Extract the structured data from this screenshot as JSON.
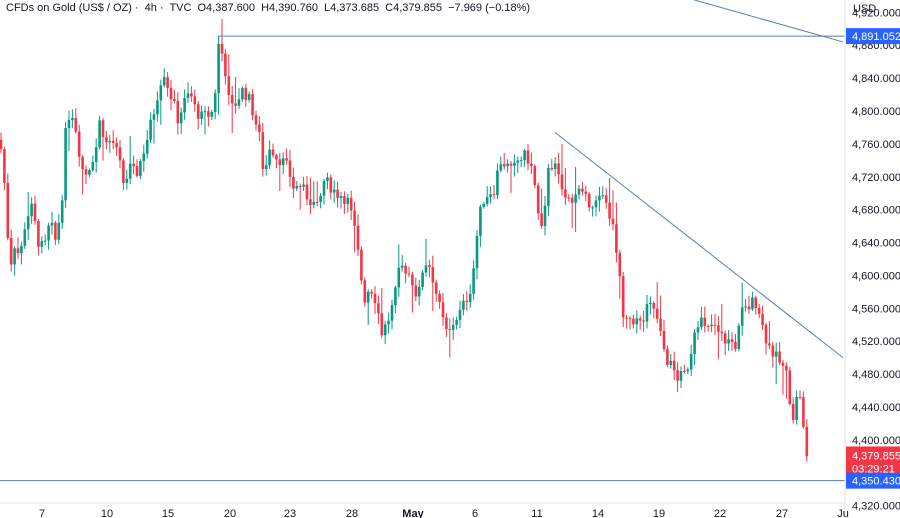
{
  "header": {
    "symbol": "CFDs on Gold (US$ / OZ)",
    "interval": "4h",
    "source": "TVC",
    "open": "O4,387.600",
    "high": "H4,390.760",
    "low": "L4,373.685",
    "close": "C4,379.855",
    "change": "−7.969 (−0.18%)"
  },
  "currency": "USD",
  "colors": {
    "up": "#089981",
    "down": "#f23645",
    "trendline": "#5b7bb5",
    "badge_blue": "#2962ff",
    "badge_red": "#f23645"
  },
  "chart_data": {
    "type": "candlestick",
    "y_range": [
      4305,
      4935
    ],
    "y_ticks": [
      "4,920.000",
      "4,880.000",
      "4,840.000",
      "4,800.000",
      "4,760.000",
      "4,720.000",
      "4,680.000",
      "4,640.000",
      "4,600.000",
      "4,560.000",
      "4,520.000",
      "4,480.000",
      "4,440.000",
      "4,400.000",
      "4,320.000"
    ],
    "x_ticks": [
      {
        "label": "7",
        "t": 42,
        "bold": false
      },
      {
        "label": "10",
        "t": 107,
        "bold": false
      },
      {
        "label": "15",
        "t": 168,
        "bold": false
      },
      {
        "label": "20",
        "t": 230,
        "bold": false
      },
      {
        "label": "23",
        "t": 290,
        "bold": false
      },
      {
        "label": "28",
        "t": 352,
        "bold": false
      },
      {
        "label": "May",
        "t": 413,
        "bold": true
      },
      {
        "label": "6",
        "t": 475,
        "bold": false
      },
      {
        "label": "11",
        "t": 537,
        "bold": false
      },
      {
        "label": "14",
        "t": 598,
        "bold": false
      },
      {
        "label": "19",
        "t": 659,
        "bold": false
      },
      {
        "label": "22",
        "t": 720,
        "bold": false
      },
      {
        "label": "27",
        "t": 782,
        "bold": false
      },
      {
        "label": "Ju",
        "t": 843,
        "bold": false
      }
    ],
    "badges": {
      "upper_level": "4,891.052",
      "last_price": "4,379.855",
      "countdown": "03:29:21",
      "lower_level": "4,350.430"
    },
    "levels": {
      "upper": 4891.052,
      "lower": 4350.43
    },
    "trendlines": [
      {
        "t1": 555,
        "p1": 4774,
        "t2": 843,
        "p2": 4500
      },
      {
        "t1": 680,
        "p1": 4940,
        "t2": 843,
        "p2": 4884
      }
    ],
    "anchors": [
      {
        "t": 0,
        "p": 4765
      },
      {
        "t": 4,
        "p": 4720
      },
      {
        "t": 10,
        "p": 4608
      },
      {
        "t": 14,
        "p": 4640
      },
      {
        "t": 20,
        "p": 4622
      },
      {
        "t": 26,
        "p": 4670
      },
      {
        "t": 32,
        "p": 4682
      },
      {
        "t": 38,
        "p": 4642
      },
      {
        "t": 44,
        "p": 4630
      },
      {
        "t": 50,
        "p": 4665
      },
      {
        "t": 56,
        "p": 4640
      },
      {
        "t": 62,
        "p": 4695
      },
      {
        "t": 66,
        "p": 4780
      },
      {
        "t": 70,
        "p": 4800
      },
      {
        "t": 74,
        "p": 4795
      },
      {
        "t": 78,
        "p": 4760
      },
      {
        "t": 84,
        "p": 4720
      },
      {
        "t": 90,
        "p": 4735
      },
      {
        "t": 96,
        "p": 4755
      },
      {
        "t": 100,
        "p": 4790
      },
      {
        "t": 106,
        "p": 4760
      },
      {
        "t": 112,
        "p": 4765
      },
      {
        "t": 118,
        "p": 4745
      },
      {
        "t": 124,
        "p": 4710
      },
      {
        "t": 130,
        "p": 4730
      },
      {
        "t": 136,
        "p": 4722
      },
      {
        "t": 142,
        "p": 4745
      },
      {
        "t": 148,
        "p": 4770
      },
      {
        "t": 154,
        "p": 4800
      },
      {
        "t": 160,
        "p": 4835
      },
      {
        "t": 164,
        "p": 4848
      },
      {
        "t": 168,
        "p": 4830
      },
      {
        "t": 172,
        "p": 4815
      },
      {
        "t": 178,
        "p": 4790
      },
      {
        "t": 184,
        "p": 4810
      },
      {
        "t": 190,
        "p": 4822
      },
      {
        "t": 196,
        "p": 4800
      },
      {
        "t": 202,
        "p": 4792
      },
      {
        "t": 208,
        "p": 4795
      },
      {
        "t": 214,
        "p": 4800
      },
      {
        "t": 218,
        "p": 4882
      },
      {
        "t": 222,
        "p": 4870
      },
      {
        "t": 226,
        "p": 4845
      },
      {
        "t": 230,
        "p": 4800
      },
      {
        "t": 236,
        "p": 4810
      },
      {
        "t": 242,
        "p": 4825
      },
      {
        "t": 248,
        "p": 4818
      },
      {
        "t": 254,
        "p": 4795
      },
      {
        "t": 260,
        "p": 4765
      },
      {
        "t": 264,
        "p": 4720
      },
      {
        "t": 270,
        "p": 4760
      },
      {
        "t": 276,
        "p": 4745
      },
      {
        "t": 282,
        "p": 4740
      },
      {
        "t": 288,
        "p": 4730
      },
      {
        "t": 294,
        "p": 4705
      },
      {
        "t": 300,
        "p": 4710
      },
      {
        "t": 306,
        "p": 4698
      },
      {
        "t": 312,
        "p": 4690
      },
      {
        "t": 318,
        "p": 4680
      },
      {
        "t": 324,
        "p": 4715
      },
      {
        "t": 330,
        "p": 4710
      },
      {
        "t": 336,
        "p": 4700
      },
      {
        "t": 342,
        "p": 4698
      },
      {
        "t": 348,
        "p": 4690
      },
      {
        "t": 354,
        "p": 4660
      },
      {
        "t": 360,
        "p": 4610
      },
      {
        "t": 364,
        "p": 4570
      },
      {
        "t": 370,
        "p": 4588
      },
      {
        "t": 376,
        "p": 4570
      },
      {
        "t": 382,
        "p": 4530
      },
      {
        "t": 388,
        "p": 4545
      },
      {
        "t": 394,
        "p": 4568
      },
      {
        "t": 400,
        "p": 4610
      },
      {
        "t": 406,
        "p": 4608
      },
      {
        "t": 412,
        "p": 4595
      },
      {
        "t": 418,
        "p": 4570
      },
      {
        "t": 424,
        "p": 4618
      },
      {
        "t": 430,
        "p": 4612
      },
      {
        "t": 436,
        "p": 4580
      },
      {
        "t": 442,
        "p": 4548
      },
      {
        "t": 448,
        "p": 4525
      },
      {
        "t": 454,
        "p": 4545
      },
      {
        "t": 460,
        "p": 4555
      },
      {
        "t": 466,
        "p": 4570
      },
      {
        "t": 472,
        "p": 4590
      },
      {
        "t": 476,
        "p": 4640
      },
      {
        "t": 482,
        "p": 4690
      },
      {
        "t": 488,
        "p": 4700
      },
      {
        "t": 494,
        "p": 4705
      },
      {
        "t": 500,
        "p": 4740
      },
      {
        "t": 506,
        "p": 4735
      },
      {
        "t": 512,
        "p": 4725
      },
      {
        "t": 518,
        "p": 4740
      },
      {
        "t": 524,
        "p": 4745
      },
      {
        "t": 530,
        "p": 4740
      },
      {
        "t": 536,
        "p": 4700
      },
      {
        "t": 540,
        "p": 4650
      },
      {
        "t": 544,
        "p": 4660
      },
      {
        "t": 548,
        "p": 4735
      },
      {
        "t": 554,
        "p": 4735
      },
      {
        "t": 560,
        "p": 4712
      },
      {
        "t": 566,
        "p": 4690
      },
      {
        "t": 572,
        "p": 4695
      },
      {
        "t": 578,
        "p": 4705
      },
      {
        "t": 584,
        "p": 4692
      },
      {
        "t": 590,
        "p": 4690
      },
      {
        "t": 596,
        "p": 4688
      },
      {
        "t": 602,
        "p": 4695
      },
      {
        "t": 608,
        "p": 4685
      },
      {
        "t": 614,
        "p": 4650
      },
      {
        "t": 620,
        "p": 4590
      },
      {
        "t": 624,
        "p": 4535
      },
      {
        "t": 630,
        "p": 4548
      },
      {
        "t": 636,
        "p": 4545
      },
      {
        "t": 642,
        "p": 4540
      },
      {
        "t": 648,
        "p": 4562
      },
      {
        "t": 654,
        "p": 4560
      },
      {
        "t": 660,
        "p": 4530
      },
      {
        "t": 666,
        "p": 4500
      },
      {
        "t": 672,
        "p": 4488
      },
      {
        "t": 678,
        "p": 4475
      },
      {
        "t": 684,
        "p": 4478
      },
      {
        "t": 690,
        "p": 4498
      },
      {
        "t": 694,
        "p": 4535
      },
      {
        "t": 700,
        "p": 4550
      },
      {
        "t": 706,
        "p": 4530
      },
      {
        "t": 712,
        "p": 4540
      },
      {
        "t": 718,
        "p": 4530
      },
      {
        "t": 724,
        "p": 4522
      },
      {
        "t": 730,
        "p": 4520
      },
      {
        "t": 736,
        "p": 4515
      },
      {
        "t": 742,
        "p": 4555
      },
      {
        "t": 748,
        "p": 4560
      },
      {
        "t": 754,
        "p": 4570
      },
      {
        "t": 758,
        "p": 4565
      },
      {
        "t": 764,
        "p": 4530
      },
      {
        "t": 770,
        "p": 4512
      },
      {
        "t": 776,
        "p": 4500
      },
      {
        "t": 782,
        "p": 4490
      },
      {
        "t": 788,
        "p": 4475
      },
      {
        "t": 792,
        "p": 4422
      },
      {
        "t": 796,
        "p": 4448
      },
      {
        "t": 800,
        "p": 4455
      },
      {
        "t": 804,
        "p": 4405
      },
      {
        "t": 808,
        "p": 4380
      }
    ]
  }
}
